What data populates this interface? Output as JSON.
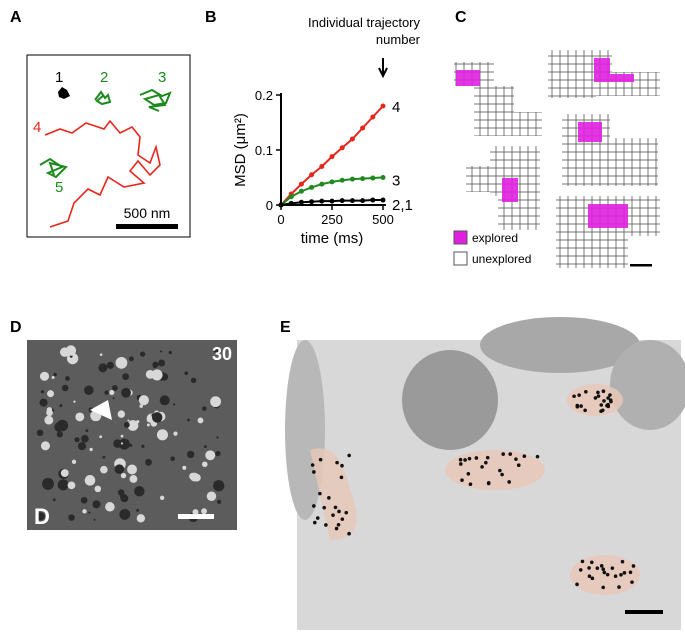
{
  "panels": {
    "A": {
      "label": "A",
      "numbers": [
        "1",
        "2",
        "3",
        "4",
        "5"
      ],
      "scale_bar": "500 nm"
    },
    "B": {
      "label": "B"
    },
    "C": {
      "label": "C",
      "legend": [
        "explored",
        "unexplored"
      ]
    },
    "D": {
      "label": "D",
      "corner_number": "30",
      "corner_letter": "D"
    },
    "E": {
      "label": "E"
    }
  },
  "chart_data": {
    "type": "line",
    "title": "Individual trajectory number",
    "x_label": "time (ms)",
    "y_label": "MSD (μm²)",
    "x": [
      0,
      50,
      100,
      150,
      200,
      250,
      300,
      350,
      400,
      450,
      500
    ],
    "series": [
      {
        "name": "4",
        "color": "#e8261c",
        "values": [
          0,
          0.02,
          0.038,
          0.055,
          0.07,
          0.088,
          0.104,
          0.12,
          0.14,
          0.16,
          0.18
        ]
      },
      {
        "name": "3",
        "color": "#1e8a1e",
        "values": [
          0,
          0.015,
          0.025,
          0.032,
          0.038,
          0.042,
          0.045,
          0.047,
          0.048,
          0.049,
          0.05
        ]
      },
      {
        "name": "2,1",
        "color": "#000000",
        "values": [
          0,
          0.003,
          0.005,
          0.006,
          0.007,
          0.007,
          0.008,
          0.008,
          0.008,
          0.009,
          0.009
        ]
      }
    ],
    "xlim": [
      0,
      500
    ],
    "xticks": [
      0,
      250,
      500
    ],
    "ylim": [
      0,
      0.2
    ],
    "yticks": [
      0,
      0.1,
      0.2
    ]
  }
}
